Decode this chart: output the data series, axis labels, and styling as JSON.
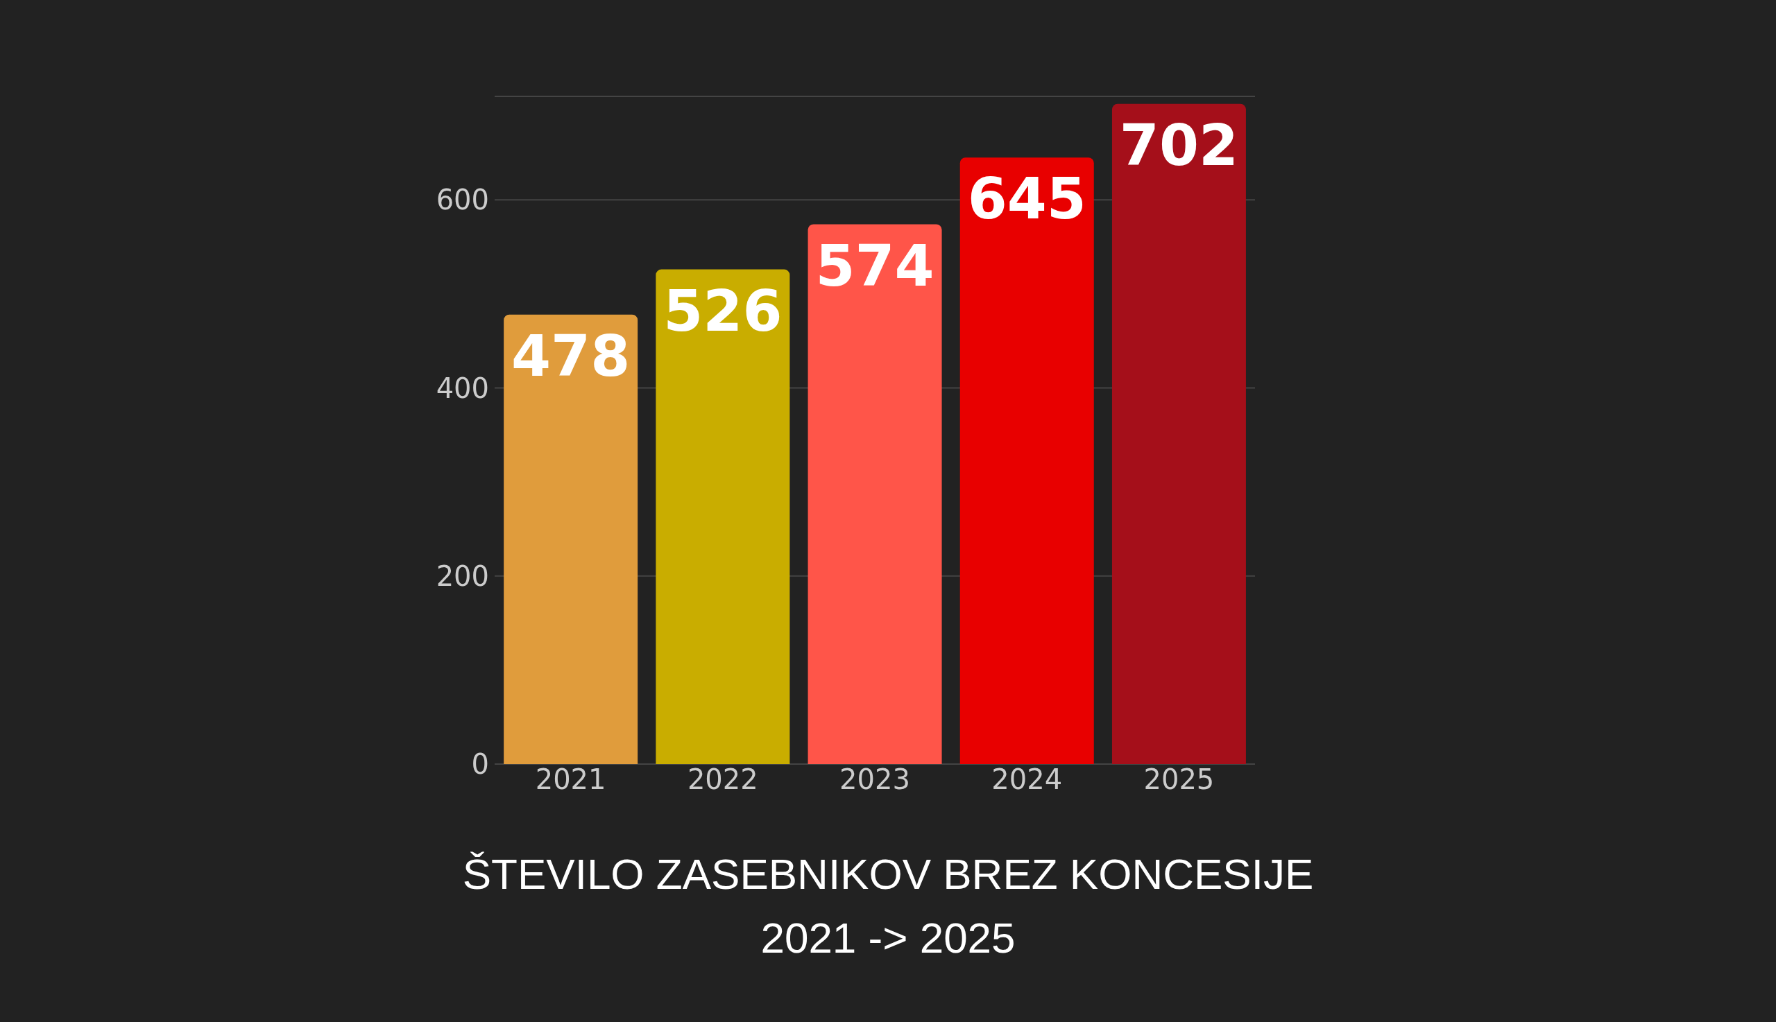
{
  "chart_data": {
    "type": "bar",
    "title": "ŠTEVILO ZASEBNIKOV BREZ KONCESIJE",
    "subtitle": "2021 -> 2025",
    "categories": [
      "2021",
      "2022",
      "2023",
      "2024",
      "2025"
    ],
    "values": [
      478,
      526,
      574,
      645,
      702
    ],
    "colors": [
      "#e09c3c",
      "#c9ad00",
      "#ff5549",
      "#e80000",
      "#a50f1a"
    ],
    "ylim": [
      0,
      710
    ],
    "yticks": [
      0,
      200,
      400,
      600
    ],
    "grid": "y",
    "data_labels": true
  }
}
